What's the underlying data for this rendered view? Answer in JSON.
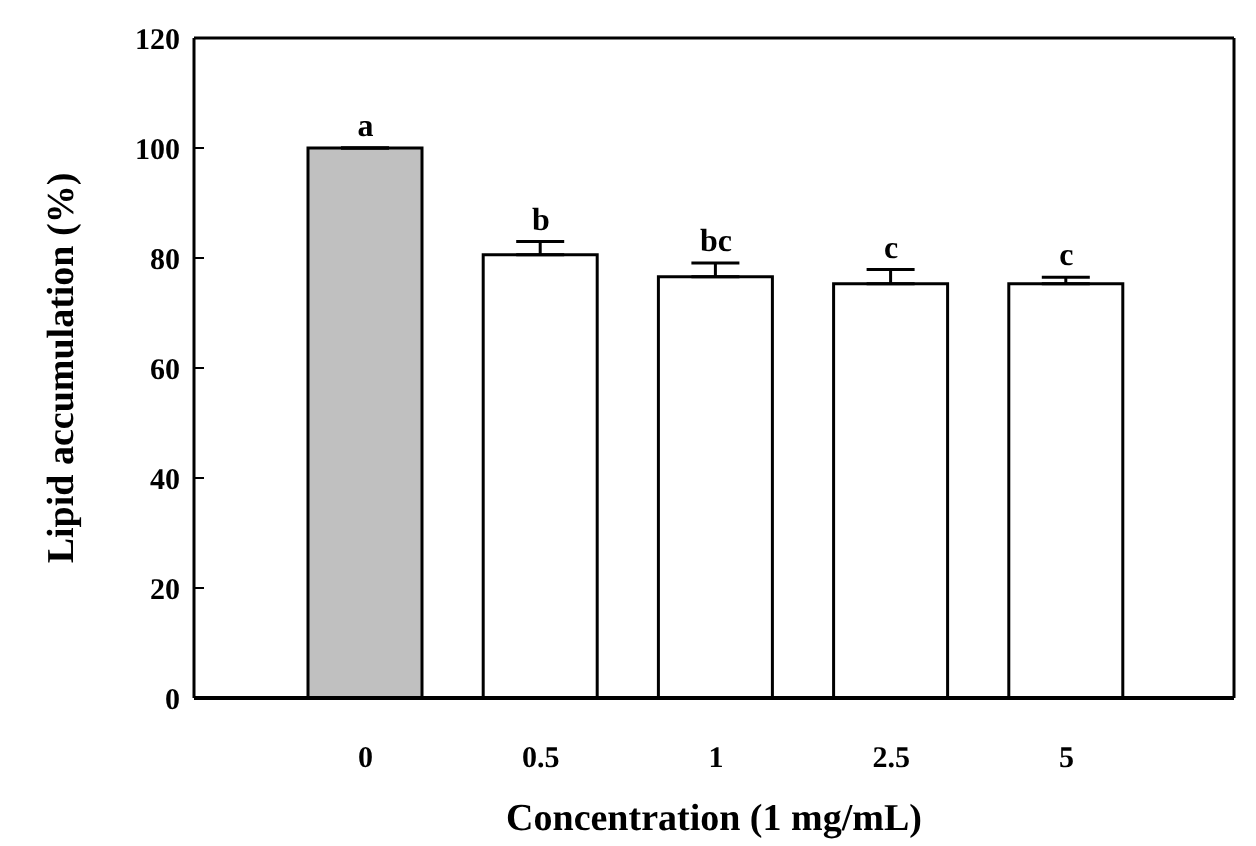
{
  "chart_data": {
    "type": "bar",
    "xlabel": "Concentration (1 mg/mL)",
    "ylabel": "Lipid accumulation (%)",
    "categories": [
      "0",
      "0.5",
      "1",
      "2.5",
      "5"
    ],
    "values": [
      100,
      80.6,
      76.6,
      75.3,
      75.3
    ],
    "errors": [
      null,
      2.4,
      2.5,
      2.6,
      1.2
    ],
    "colors": [
      "#c0c0c0",
      "#ffffff",
      "#ffffff",
      "#ffffff",
      "#ffffff"
    ],
    "ylim": [
      0,
      120
    ],
    "yticks": [
      0,
      20,
      40,
      60,
      80,
      100,
      120
    ],
    "grid": false,
    "legend": false,
    "annotations": [
      "a",
      "b",
      "bc",
      "c",
      "c"
    ]
  }
}
